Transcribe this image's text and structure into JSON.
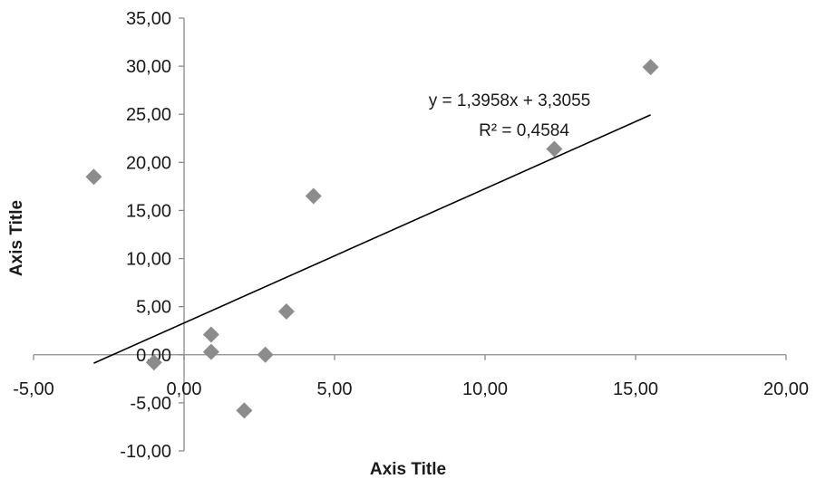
{
  "chart_data": {
    "type": "scatter",
    "title": "",
    "xlabel": "Axis Title",
    "ylabel": "Axis Title",
    "xlim": [
      -5,
      20
    ],
    "ylim": [
      -10,
      35
    ],
    "x_ticks": [
      -5,
      0,
      5,
      10,
      15,
      20
    ],
    "y_ticks": [
      -10,
      -5,
      0,
      5,
      10,
      15,
      20,
      25,
      30,
      35
    ],
    "x_tick_labels": [
      "-5,00",
      "0,00",
      "5,00",
      "10,00",
      "15,00",
      "20,00"
    ],
    "y_tick_labels": [
      "-10,00",
      "-5,00",
      "0,00",
      "5,00",
      "10,00",
      "15,00",
      "20,00",
      "25,00",
      "30,00",
      "35,00"
    ],
    "grid": false,
    "marker": "diamond",
    "marker_color": "#8c8c8c",
    "points": [
      {
        "x": -3.0,
        "y": 18.5
      },
      {
        "x": -1.0,
        "y": -0.8
      },
      {
        "x": 0.9,
        "y": 2.1
      },
      {
        "x": 0.9,
        "y": 0.3
      },
      {
        "x": 2.0,
        "y": -5.8
      },
      {
        "x": 2.7,
        "y": 0.0
      },
      {
        "x": 3.4,
        "y": 4.5
      },
      {
        "x": 4.3,
        "y": 16.5
      },
      {
        "x": 12.3,
        "y": 21.4
      },
      {
        "x": 15.5,
        "y": 29.9
      }
    ],
    "trendline": {
      "slope": 1.3958,
      "intercept": 3.3055,
      "x_range": [
        -3.0,
        15.5
      ],
      "color": "#000000",
      "equation_label": "y = 1,3958x + 3,3055",
      "r2_label": "R² = 0,4584"
    }
  }
}
